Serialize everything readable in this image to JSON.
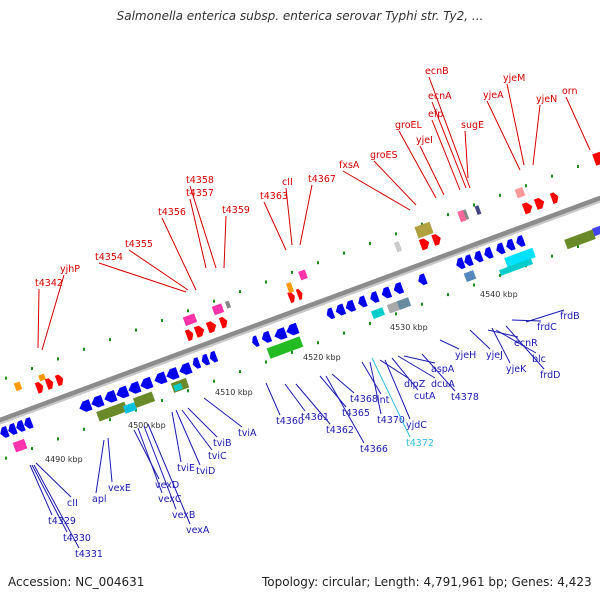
{
  "title": "Salmonella enterica subsp. enterica serovar Typhi str. Ty2, ...",
  "footer": {
    "accession": "Accession: NC_004631",
    "summary": "Topology: circular; Length: 4,791,961 bp; Genes: 4,423"
  },
  "colors": {
    "top_label": "#d40000",
    "bottom_label": "#1a1ab0",
    "highlight_label": "#33bbdd",
    "backbone": "#8c8c8c",
    "forward_gene": "#ff0000",
    "reverse_gene": "#0000ee",
    "tick": "#1a8a1a"
  },
  "scale_labels": [
    "4490 kbp",
    "4500 kbp",
    "4510 kbp",
    "4520 kbp",
    "4530 kbp",
    "4540 kbp"
  ],
  "top_labels": [
    "t4342",
    "yjhP",
    "t4354",
    "t4355",
    "t4356",
    "t4357",
    "t4358",
    "t4359",
    "t4363",
    "cII",
    "t4367",
    "fxsA",
    "groES",
    "groEL",
    "yjeI",
    "efp",
    "ecnA",
    "ecnB",
    "sugE",
    "yjeA",
    "yjeM",
    "yjeN",
    "orn"
  ],
  "bottom_labels": [
    "t4329",
    "t4330",
    "t4331",
    "cII",
    "apl",
    "vexE",
    "vexD",
    "vexC",
    "vexB",
    "vexA",
    "tviE",
    "tviD",
    "tviC",
    "tviB",
    "tviA",
    "t4360",
    "t4361",
    "t4362",
    "t4365",
    "t4366",
    "t4368",
    "int",
    "t4370",
    "dipZ",
    "yjdC",
    "t4372",
    "cutA",
    "dcuA",
    "aspA",
    "t4378",
    "yjeH",
    "yjeJ",
    "yjeK",
    "ecnR",
    "blc",
    "frdD",
    "frdC",
    "frdB"
  ]
}
